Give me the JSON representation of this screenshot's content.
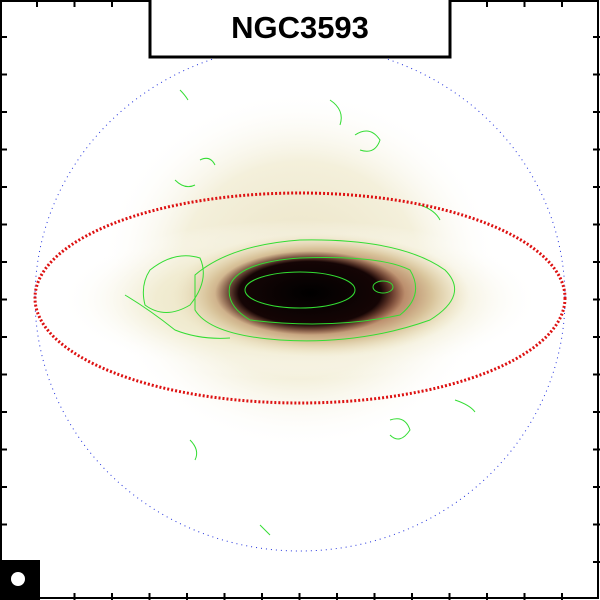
{
  "title": "NGC3593"
}
